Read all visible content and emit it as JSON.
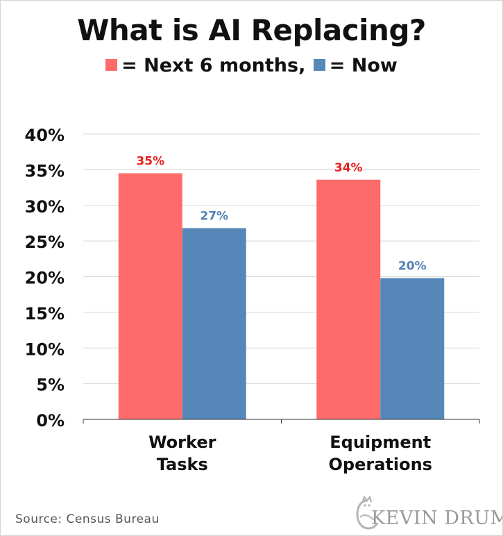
{
  "title": "What is AI Replacing?",
  "legend": [
    {
      "label": "= Next 6 months,",
      "color": "#ff6b6b"
    },
    {
      "label": "= Now",
      "color": "#5588b8"
    }
  ],
  "source": "Source:  Census Bureau",
  "logo": {
    "text": "KEVIN DRUM",
    "icon": "cat-icon"
  },
  "chart_data": {
    "type": "bar",
    "categories": [
      [
        "Worker",
        "Tasks"
      ],
      [
        "Equipment",
        "Operations"
      ]
    ],
    "series": [
      {
        "name": "Next 6 months",
        "color": "#ff6b6b",
        "label_color": "#e8201e",
        "values": [
          34.5,
          33.6
        ],
        "labels": [
          "35%",
          "34%"
        ]
      },
      {
        "name": "Now",
        "color": "#5588b8",
        "label_color": "#4f81b5",
        "values": [
          26.8,
          19.8
        ],
        "labels": [
          "27%",
          "20%"
        ]
      }
    ],
    "ylim": [
      0,
      40
    ],
    "yticks": [
      0,
      5,
      10,
      15,
      20,
      25,
      30,
      35,
      40
    ],
    "ytick_labels": [
      "0%",
      "5%",
      "10%",
      "15%",
      "20%",
      "25%",
      "30%",
      "35%",
      "40%"
    ],
    "grid": true,
    "legend_position": "top-center"
  }
}
